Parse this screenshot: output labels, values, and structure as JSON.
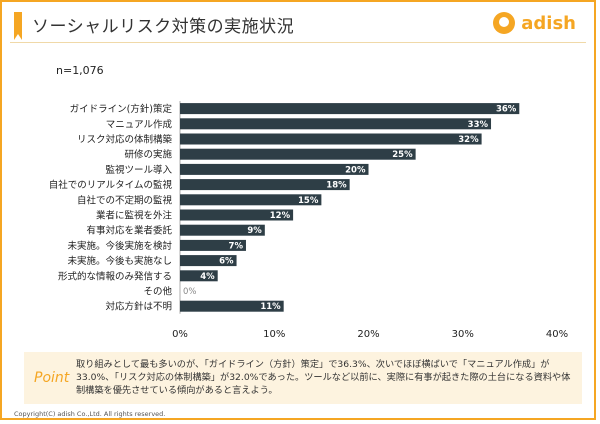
{
  "header": {
    "title": "ソーシャルリスク対策の実施状況",
    "logo_text": "adish"
  },
  "sample": "n=1,076",
  "colors": {
    "accent": "#f5a623",
    "bar": "#2e3e46",
    "label_text": "#ffffff"
  },
  "chart_data": {
    "type": "bar",
    "orientation": "horizontal",
    "categories": [
      "ガイドライン(方針)策定",
      "マニュアル作成",
      "リスク対応の体制構築",
      "研修の実施",
      "監視ツール導入",
      "自社でのリアルタイムの監視",
      "自社での不定期の監視",
      "業者に監視を外注",
      "有事対応を業者委託",
      "未実施。今後実施を検討",
      "未実施。今後も実施なし",
      "形式的な情報のみ発信する",
      "その他",
      "対応方針は不明"
    ],
    "values": [
      36,
      33,
      32,
      25,
      20,
      18,
      15,
      12,
      9,
      7,
      6,
      4,
      0,
      11
    ],
    "value_labels": [
      "36%",
      "33%",
      "32%",
      "25%",
      "20%",
      "18%",
      "15%",
      "12%",
      "9%",
      "7%",
      "6%",
      "4%",
      "0%",
      "11%"
    ],
    "xlim": [
      0,
      40
    ],
    "xticks": [
      0,
      10,
      20,
      30,
      40
    ],
    "xtick_labels": [
      "0%",
      "10%",
      "20%",
      "30%",
      "40%"
    ],
    "title": "",
    "xlabel": "",
    "ylabel": "",
    "grid": false
  },
  "point": {
    "label": "Point",
    "text": "取り組みとして最も多いのが、「ガイドライン（方針）策定」で36.3%、次いでほぼ横ばいで「マニュアル作成」が33.0%、「リスク対応の体制構築」が32.0%であった。ツールなど以前に、実際に有事が起きた際の土台になる資料や体制構築を優先させている傾向があると言えよう。"
  },
  "copyright": "Copyright(C) adish Co.,Ltd.  All rights reserved."
}
